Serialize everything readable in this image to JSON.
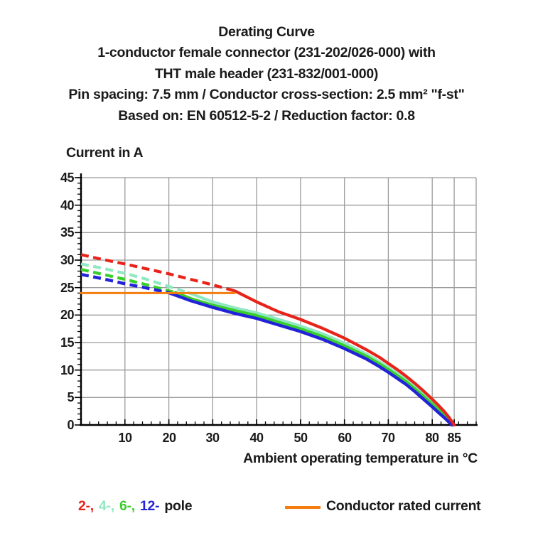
{
  "title_block": {
    "line1": "Derating Curve",
    "line2": "1-conductor female connector (231-202/026-000) with",
    "line3": "THT male header (231-832/001-000)",
    "line4": "Pin spacing: 7.5 mm / Conductor cross-section: 2.5 mm² \"f-st\"",
    "line5": "Based on: EN 60512-5-2 / Reduction factor: 0.8"
  },
  "chart_data": {
    "type": "line",
    "title": "Derating Curve",
    "xlabel": "Ambient operating temperature in °C",
    "ylabel": "Current in A",
    "xlim": [
      0,
      90
    ],
    "ylim": [
      0,
      45
    ],
    "x_major_ticks": [
      10,
      20,
      30,
      40,
      50,
      60,
      70,
      80,
      85
    ],
    "x_minor_step": 2,
    "y_major_ticks": [
      0,
      5,
      10,
      15,
      20,
      25,
      30,
      35,
      40,
      45
    ],
    "y_minor_step": 1,
    "grid_x": [
      10,
      20,
      30,
      40,
      50,
      60,
      70,
      80,
      85,
      90
    ],
    "grid_y": [
      5,
      10,
      15,
      20,
      25,
      30,
      35,
      40,
      45
    ],
    "grid_color": "#9b9b9b",
    "axis_color": "#000000",
    "legend_position": "bottom",
    "series": [
      {
        "name": "4-pole",
        "color": "#90e8c2",
        "width": 4.2,
        "dashed_points": [
          [
            0,
            29.3
          ],
          [
            5,
            28.5
          ],
          [
            10,
            27.6
          ],
          [
            15,
            26.5
          ],
          [
            20,
            25.2
          ],
          [
            24.5,
            24.05
          ]
        ],
        "solid_points": [
          [
            24.5,
            24.05
          ],
          [
            30,
            22.4
          ],
          [
            35,
            21.3
          ],
          [
            40,
            20.4
          ],
          [
            45,
            19.2
          ],
          [
            50,
            18.0
          ],
          [
            55,
            16.6
          ],
          [
            60,
            14.9
          ],
          [
            65,
            12.9
          ],
          [
            68,
            11.5
          ],
          [
            70,
            10.5
          ],
          [
            72,
            9.4
          ],
          [
            74,
            8.2
          ],
          [
            76,
            6.9
          ],
          [
            78,
            5.5
          ],
          [
            80,
            4.1
          ],
          [
            81.5,
            3.0
          ],
          [
            82.8,
            2.0
          ],
          [
            83.8,
            1.1
          ],
          [
            84.4,
            0.4
          ],
          [
            84.7,
            0
          ]
        ]
      },
      {
        "name": "6-pole",
        "color": "#38cf2a",
        "width": 4.2,
        "dashed_points": [
          [
            0,
            28.3
          ],
          [
            5,
            27.4
          ],
          [
            10,
            26.5
          ],
          [
            15,
            25.5
          ],
          [
            20,
            24.4
          ],
          [
            21.5,
            24.1
          ]
        ],
        "solid_points": [
          [
            21.5,
            24.1
          ],
          [
            25,
            23.0
          ],
          [
            30,
            21.8
          ],
          [
            35,
            20.8
          ],
          [
            40,
            19.9
          ],
          [
            45,
            18.7
          ],
          [
            50,
            17.5
          ],
          [
            55,
            16.1
          ],
          [
            60,
            14.4
          ],
          [
            65,
            12.5
          ],
          [
            68,
            11.1
          ],
          [
            70,
            10.1
          ],
          [
            72,
            9.0
          ],
          [
            74,
            7.9
          ],
          [
            76,
            6.6
          ],
          [
            78,
            5.2
          ],
          [
            80,
            3.8
          ],
          [
            81.5,
            2.7
          ],
          [
            82.8,
            1.7
          ],
          [
            83.8,
            0.9
          ],
          [
            84.3,
            0.3
          ],
          [
            84.6,
            0
          ]
        ]
      },
      {
        "name": "12-pole",
        "color": "#2222d8",
        "width": 4.4,
        "dashed_points": [
          [
            0,
            27.4
          ],
          [
            5,
            26.6
          ],
          [
            10,
            25.7
          ],
          [
            15,
            24.9
          ],
          [
            20,
            24.05
          ]
        ],
        "solid_points": [
          [
            20,
            24.05
          ],
          [
            25,
            22.6
          ],
          [
            30,
            21.4
          ],
          [
            35,
            20.3
          ],
          [
            40,
            19.4
          ],
          [
            45,
            18.2
          ],
          [
            50,
            17.0
          ],
          [
            55,
            15.6
          ],
          [
            60,
            13.9
          ],
          [
            65,
            12.0
          ],
          [
            68,
            10.6
          ],
          [
            70,
            9.6
          ],
          [
            72,
            8.5
          ],
          [
            74,
            7.4
          ],
          [
            76,
            6.1
          ],
          [
            78,
            4.7
          ],
          [
            80,
            3.3
          ],
          [
            81.5,
            2.2
          ],
          [
            82.8,
            1.3
          ],
          [
            83.7,
            0.6
          ],
          [
            84.2,
            0.2
          ],
          [
            84.5,
            0
          ]
        ]
      },
      {
        "name": "2-pole",
        "color": "#e8231a",
        "width": 4.2,
        "dashed_points": [
          [
            0,
            31
          ],
          [
            5,
            30.1
          ],
          [
            10,
            29.3
          ],
          [
            15,
            28.4
          ],
          [
            20,
            27.5
          ],
          [
            25,
            26.5
          ],
          [
            30,
            25.5
          ],
          [
            35,
            24.4
          ]
        ],
        "solid_points": [
          [
            35,
            24.4
          ],
          [
            40,
            22.4
          ],
          [
            45,
            20.6
          ],
          [
            50,
            19.2
          ],
          [
            55,
            17.6
          ],
          [
            60,
            15.8
          ],
          [
            65,
            13.7
          ],
          [
            68,
            12.3
          ],
          [
            70,
            11.2
          ],
          [
            72,
            10.1
          ],
          [
            74,
            8.9
          ],
          [
            76,
            7.6
          ],
          [
            78,
            6.2
          ],
          [
            80,
            4.7
          ],
          [
            81.5,
            3.5
          ],
          [
            82.8,
            2.4
          ],
          [
            83.8,
            1.4
          ],
          [
            84.5,
            0.6
          ],
          [
            85,
            0
          ]
        ]
      },
      {
        "name": "conductor-rated-current",
        "color": "#f57d0e",
        "width": 3,
        "solid_points": [
          [
            0,
            24
          ],
          [
            35,
            24
          ]
        ]
      }
    ]
  },
  "legend": {
    "pole_entries": [
      {
        "text": "2-,",
        "color": "#e8231a"
      },
      {
        "text": "4-,",
        "color": "#90e8c2"
      },
      {
        "text": "6-,",
        "color": "#38cf2a"
      },
      {
        "text": "12-",
        "color": "#2222d8"
      }
    ],
    "pole_suffix": "pole",
    "rated_label": "Conductor rated current",
    "rated_color": "#f57d0e"
  }
}
